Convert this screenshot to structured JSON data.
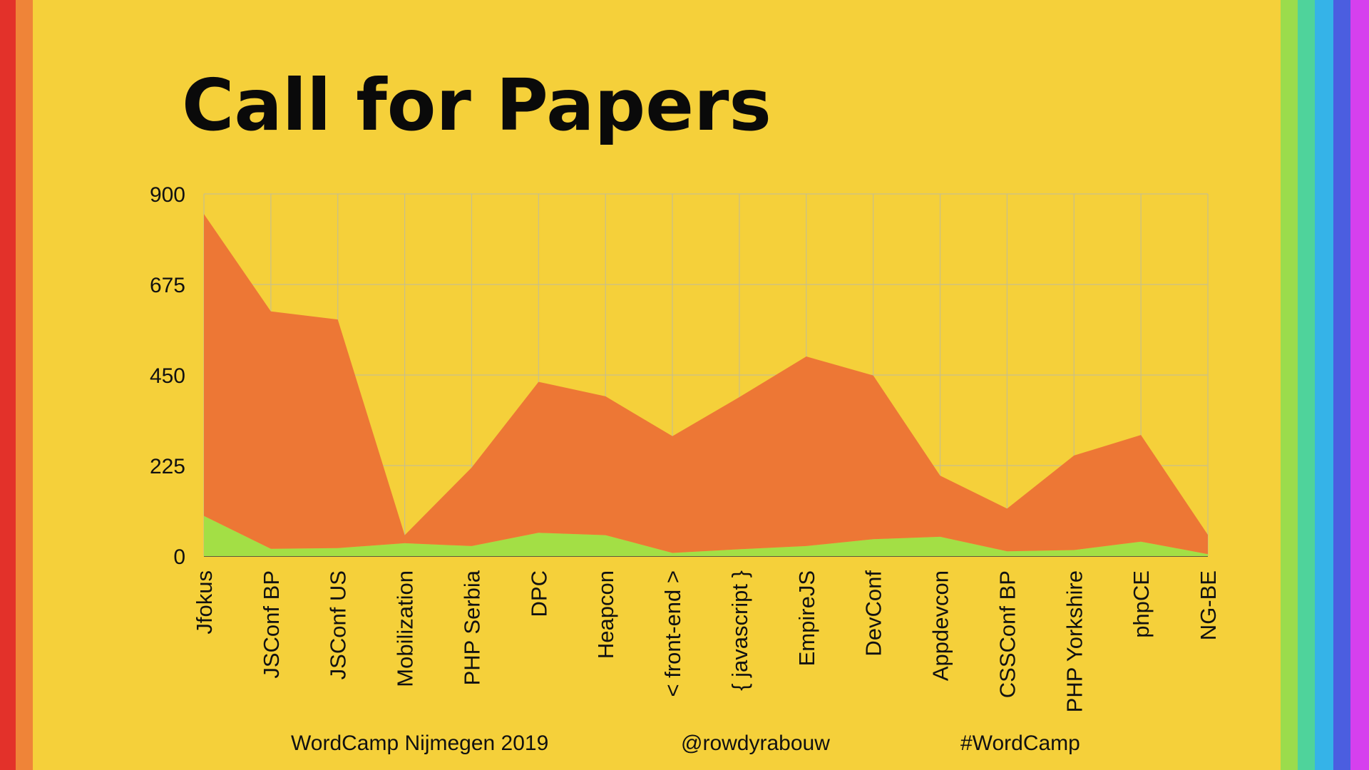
{
  "slide": {
    "title": "Call for Papers",
    "stripe_colors_left": [
      "#e3312a",
      "#ef8438"
    ],
    "stripe_colors_right": [
      "#9bdc4c",
      "#4fd39b",
      "#35b3e8",
      "#4b5ee0",
      "#d640ee"
    ]
  },
  "footer": {
    "event": "WordCamp Nijmegen 2019",
    "handle": "@rowdyrabouw",
    "hashtag": "#WordCamp"
  },
  "chart_data": {
    "type": "area",
    "stacked": true,
    "title": "",
    "xlabel": "",
    "ylabel": "",
    "ylim": [
      0,
      900
    ],
    "yticks": [
      0,
      225,
      450,
      675,
      900
    ],
    "grid": true,
    "legend": "none",
    "categories": [
      "Jfokus",
      "JSConf BP",
      "JSConf US",
      "Mobilization",
      "PHP Serbia",
      "DPC",
      "Heapcon",
      "< front-end >",
      "{ javascript }",
      "EmpireJS",
      "DevConf",
      "Appdevcon",
      "CSSConf BP",
      "PHP Yorkshire",
      "phpCE",
      "NG-BE"
    ],
    "series": [
      {
        "color": "#a3df45",
        "values": [
          100,
          18,
          20,
          32,
          25,
          58,
          52,
          8,
          17,
          25,
          42,
          48,
          12,
          15,
          36,
          5
        ]
      },
      {
        "color": "#ed7735",
        "values": [
          750,
          590,
          568,
          20,
          195,
          375,
          345,
          290,
          378,
          471,
          407,
          152,
          106,
          235,
          265,
          48
        ]
      }
    ]
  }
}
